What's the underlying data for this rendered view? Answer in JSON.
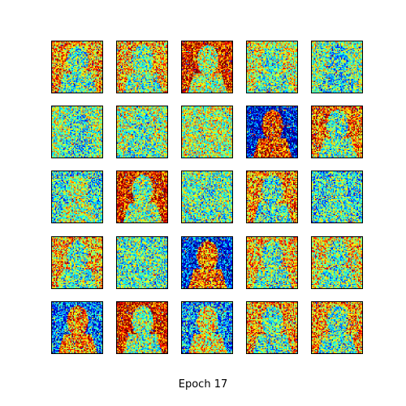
{
  "figure": {
    "caption": "Epoch 17",
    "colormap": "jet",
    "rows": 5,
    "cols": 5,
    "tiles": [
      {
        "bg": 0.72,
        "fg": 0.45
      },
      {
        "bg": 0.7,
        "fg": 0.48
      },
      {
        "bg": 0.9,
        "fg": 0.55
      },
      {
        "bg": 0.6,
        "fg": 0.45
      },
      {
        "bg": 0.5,
        "fg": 0.4
      },
      {
        "bg": 0.52,
        "fg": 0.42
      },
      {
        "bg": 0.55,
        "fg": 0.45
      },
      {
        "bg": 0.55,
        "fg": 0.55
      },
      {
        "bg": 0.1,
        "fg": 0.85
      },
      {
        "bg": 0.78,
        "fg": 0.45
      },
      {
        "bg": 0.4,
        "fg": 0.55
      },
      {
        "bg": 0.88,
        "fg": 0.5
      },
      {
        "bg": 0.48,
        "fg": 0.45
      },
      {
        "bg": 0.75,
        "fg": 0.42
      },
      {
        "bg": 0.38,
        "fg": 0.45
      },
      {
        "bg": 0.7,
        "fg": 0.45
      },
      {
        "bg": 0.45,
        "fg": 0.45
      },
      {
        "bg": 0.15,
        "fg": 0.8
      },
      {
        "bg": 0.68,
        "fg": 0.45
      },
      {
        "bg": 0.65,
        "fg": 0.45
      },
      {
        "bg": 0.25,
        "fg": 0.75
      },
      {
        "bg": 0.9,
        "fg": 0.5
      },
      {
        "bg": 0.28,
        "fg": 0.62
      },
      {
        "bg": 0.72,
        "fg": 0.45
      },
      {
        "bg": 0.72,
        "fg": 0.45
      }
    ]
  }
}
